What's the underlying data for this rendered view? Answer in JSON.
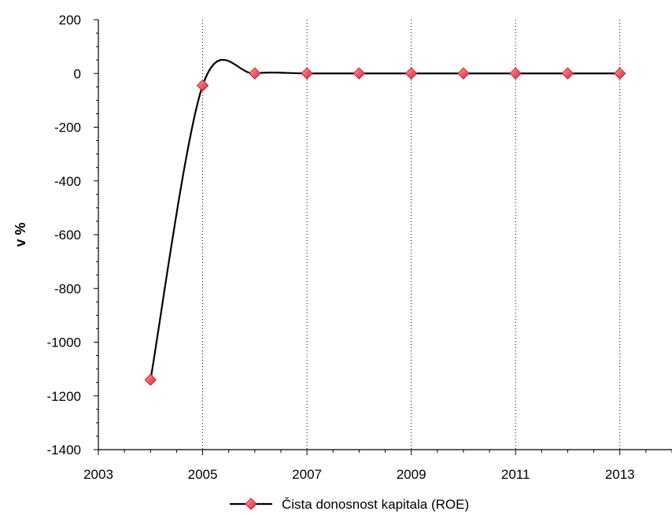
{
  "chart_data": {
    "type": "line",
    "title": "",
    "xlabel": "",
    "ylabel": "v %",
    "xlim": [
      2003,
      2014
    ],
    "ylim": [
      -1400,
      200
    ],
    "x_ticks": [
      2003,
      2005,
      2007,
      2009,
      2011,
      2013
    ],
    "y_ticks": [
      200,
      0,
      -200,
      -400,
      -600,
      -800,
      -1000,
      -1200,
      -1400
    ],
    "x_gridlines": [
      2005,
      2007,
      2009,
      2011,
      2013
    ],
    "grid": "vertical dotted",
    "legend_position": "bottom-center",
    "series": [
      {
        "name": "Čista donosnost kapitala (ROE)",
        "color": "#000000",
        "marker": "diamond",
        "marker_color": "#f05a64",
        "x": [
          2004,
          2005,
          2006,
          2007,
          2008,
          2009,
          2010,
          2011,
          2012,
          2013
        ],
        "y": [
          -1140,
          -45,
          0,
          0,
          0,
          0,
          0,
          0,
          0,
          0
        ]
      }
    ]
  }
}
